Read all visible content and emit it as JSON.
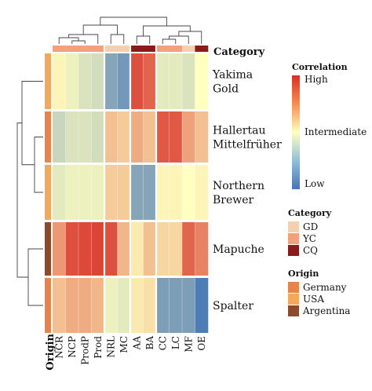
{
  "chart_data": {
    "type": "heatmap",
    "title": "",
    "columns": [
      "NCR",
      "NCP",
      "ProdP",
      "Prod",
      "NRL",
      "MC",
      "AA",
      "BA",
      "CC",
      "LC",
      "MF",
      "OE"
    ],
    "rows": [
      "Yakima Gold",
      "Hallertau Mittelfrüher",
      "Northern Brewer",
      "Mapuche",
      "Spalter"
    ],
    "row_label_lines": [
      [
        "Yakima",
        "Gold"
      ],
      [
        "Hallertau",
        "Mittelfrüher"
      ],
      [
        "Northern",
        "Brewer"
      ],
      [
        "Mapuche"
      ],
      [
        "Spalter"
      ]
    ],
    "values": [
      [
        0.05,
        -0.1,
        -0.2,
        -0.25,
        -0.65,
        -0.75,
        0.85,
        0.75,
        -0.15,
        -0.15,
        -0.2,
        0.0
      ],
      [
        -0.3,
        -0.2,
        -0.2,
        -0.25,
        0.3,
        0.25,
        0.4,
        0.3,
        0.8,
        0.8,
        0.45,
        0.3
      ],
      [
        -0.15,
        -0.1,
        -0.1,
        -0.1,
        0.25,
        0.25,
        -0.65,
        -0.65,
        0.05,
        0.05,
        0.0,
        0.05
      ],
      [
        0.5,
        0.85,
        0.88,
        0.9,
        0.85,
        0.35,
        0.1,
        0.3,
        0.2,
        0.2,
        0.75,
        0.6
      ],
      [
        0.3,
        0.4,
        0.4,
        0.35,
        -0.1,
        -0.15,
        0.1,
        0.15,
        -0.7,
        -0.7,
        -0.7,
        -0.95
      ]
    ],
    "column_category": [
      "YC",
      "YC",
      "YC",
      "YC",
      "GD",
      "GD",
      "CQ",
      "CQ",
      "YC",
      "YC",
      "GD",
      "CQ"
    ],
    "row_origin": [
      "USA",
      "Germany",
      "USA",
      "Argentina",
      "Germany"
    ],
    "column_axis_title": "Category",
    "row_axis_title": "Origin",
    "legend": {
      "correlation": {
        "title": "Correlation",
        "labels": [
          "High",
          "Intermediate",
          "Low"
        ]
      },
      "category": {
        "title": "Category",
        "items": [
          {
            "label": "GD",
            "color": "#F5D0B0"
          },
          {
            "label": "YC",
            "color": "#F2A07E"
          },
          {
            "label": "CQ",
            "color": "#8B1A1A"
          }
        ]
      },
      "origin": {
        "title": "Origin",
        "items": [
          {
            "label": "Germany",
            "color": "#E8834A"
          },
          {
            "label": "USA",
            "color": "#F4A85C"
          },
          {
            "label": "Argentina",
            "color": "#8B4A2B"
          }
        ]
      }
    },
    "colors": {
      "low": "#4575B4",
      "mid": "#FFFFBF",
      "high": "#D73027"
    },
    "value_range": [
      -1,
      1
    ]
  }
}
